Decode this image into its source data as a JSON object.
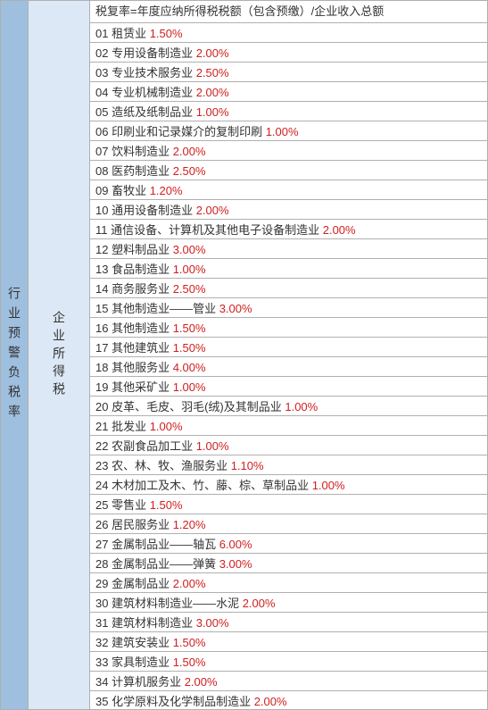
{
  "leftLabel": "行业预警负税率",
  "midLabel": "企业所得税",
  "headerFormula": "税复率=年度应纳所得税税额（包含预缴）/企业收入总额",
  "rows": [
    {
      "num": "01",
      "name": "租赁业",
      "rate": "1.50%"
    },
    {
      "num": "02",
      "name": "专用设备制造业",
      "rate": "2.00%"
    },
    {
      "num": "03",
      "name": "专业技术服务业",
      "rate": "2.50%"
    },
    {
      "num": "04",
      "name": "专业机械制造业",
      "rate": "2.00%"
    },
    {
      "num": "05",
      "name": "造纸及纸制品业",
      "rate": "1.00%"
    },
    {
      "num": "06",
      "name": "印刷业和记录媒介的复制印刷",
      "rate": "1.00%"
    },
    {
      "num": "07",
      "name": "饮料制造业",
      "rate": "2.00%"
    },
    {
      "num": "08",
      "name": "医药制造业",
      "rate": "2.50%"
    },
    {
      "num": "09",
      "name": "畜牧业",
      "rate": "1.20%"
    },
    {
      "num": "10",
      "name": "通用设备制造业",
      "rate": "2.00%"
    },
    {
      "num": "11",
      "name": "通信设备、计算机及其他电子设备制造业",
      "rate": "2.00%"
    },
    {
      "num": "12",
      "name": "塑料制品业",
      "rate": "3.00%"
    },
    {
      "num": "13",
      "name": "食品制造业",
      "rate": "1.00%"
    },
    {
      "num": "14",
      "name": "商务服务业",
      "rate": "2.50%"
    },
    {
      "num": "15",
      "name": "其他制造业——管业",
      "rate": "3.00%"
    },
    {
      "num": "16",
      "name": "其他制造业",
      "rate": "1.50%"
    },
    {
      "num": "17",
      "name": "其他建筑业",
      "rate": "1.50%"
    },
    {
      "num": "18",
      "name": "其他服务业",
      "rate": "4.00%"
    },
    {
      "num": "19",
      "name": "其他采矿业",
      "rate": "1.00%"
    },
    {
      "num": "20",
      "name": "皮革、毛皮、羽毛(绒)及其制品业",
      "rate": "1.00%"
    },
    {
      "num": "21",
      "name": "批发业",
      "rate": "1.00%"
    },
    {
      "num": "22",
      "name": "农副食品加工业",
      "rate": "1.00%"
    },
    {
      "num": "23",
      "name": "农、林、牧、渔服务业",
      "rate": "1.10%"
    },
    {
      "num": "24",
      "name": "木材加工及木、竹、藤、棕、草制品业",
      "rate": "1.00%"
    },
    {
      "num": "25",
      "name": "零售业",
      "rate": "1.50%"
    },
    {
      "num": "26",
      "name": "居民服务业",
      "rate": "1.20%"
    },
    {
      "num": "27",
      "name": "金属制品业——轴瓦",
      "rate": "6.00%"
    },
    {
      "num": "28",
      "name": "金属制品业——弹簧",
      "rate": "3.00%"
    },
    {
      "num": "29",
      "name": "金属制品业",
      "rate": "2.00%"
    },
    {
      "num": "30",
      "name": "建筑材料制造业——水泥",
      "rate": "2.00%"
    },
    {
      "num": "31",
      "name": "建筑材料制造业",
      "rate": "3.00%"
    },
    {
      "num": "32",
      "name": "建筑安装业",
      "rate": "1.50%"
    },
    {
      "num": "33",
      "name": "家具制造业",
      "rate": "1.50%"
    },
    {
      "num": "34",
      "name": "计算机服务业",
      "rate": "2.00%"
    },
    {
      "num": "35",
      "name": "化学原料及化学制品制造业",
      "rate": "2.00%"
    }
  ],
  "colors": {
    "leftBg": "#9fbfdf",
    "midBg": "#dce8f5",
    "rateColor": "#d02020",
    "border": "#b0b0b0"
  }
}
